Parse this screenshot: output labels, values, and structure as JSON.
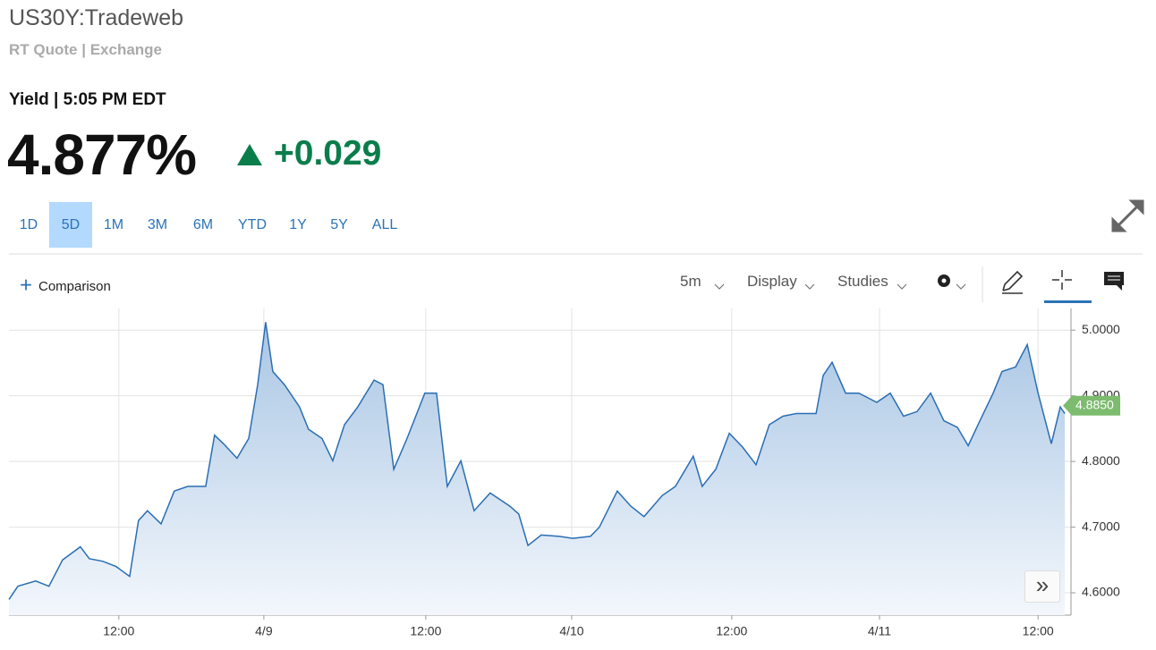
{
  "header": {
    "title": "US30Y:Tradeweb",
    "subtitle": "RT Quote | Exchange",
    "quote_label": "Yield | 5:05 PM EDT",
    "price": "4.877%",
    "change": "+0.029"
  },
  "ranges": [
    "1D",
    "5D",
    "1M",
    "3M",
    "6M",
    "YTD",
    "1Y",
    "5Y",
    "ALL"
  ],
  "active_range": 1,
  "toolbar": {
    "comparison": "Comparison",
    "interval": "5m",
    "display": "Display",
    "studies": "Studies"
  },
  "chart_data": {
    "type": "line",
    "color": "#2a6eb3",
    "x": [
      0.172,
      0.201,
      0.259,
      0.302,
      0.346,
      0.404,
      0.433,
      0.477,
      0.52,
      0.564,
      0.593,
      0.622,
      0.666,
      0.709,
      0.753,
      0.811,
      0.84,
      0.869,
      0.913,
      0.951,
      0.98,
      1.006,
      1.029,
      1.067,
      1.116,
      1.145,
      1.189,
      1.224,
      1.262,
      1.305,
      1.358,
      1.387,
      1.422,
      1.465,
      1.523,
      1.561,
      1.596,
      1.64,
      1.683,
      1.735,
      1.799,
      1.828,
      1.858,
      1.901,
      1.959,
      2.003,
      2.061,
      2.09,
      2.148,
      2.192,
      2.235,
      2.294,
      2.337,
      2.395,
      2.424,
      2.468,
      2.512,
      2.555,
      2.599,
      2.642,
      2.686,
      2.73,
      2.794,
      2.817,
      2.846,
      2.89,
      2.933,
      2.991,
      3.035,
      3.078,
      3.122,
      3.166,
      3.209,
      3.253,
      3.288,
      3.326,
      3.369,
      3.398,
      3.442,
      3.48,
      3.515,
      3.558,
      3.587,
      3.602
    ],
    "values": [
      4.59,
      4.61,
      4.618,
      4.61,
      4.65,
      4.67,
      4.652,
      4.648,
      4.64,
      4.625,
      4.71,
      4.725,
      4.705,
      4.755,
      4.762,
      4.762,
      4.84,
      4.827,
      4.805,
      4.835,
      4.917,
      5.012,
      4.937,
      4.917,
      4.883,
      4.849,
      4.835,
      4.801,
      4.856,
      4.883,
      4.924,
      4.917,
      4.788,
      4.835,
      4.904,
      4.904,
      4.762,
      4.801,
      4.725,
      4.752,
      4.732,
      4.72,
      4.672,
      4.688,
      4.686,
      4.683,
      4.686,
      4.7,
      4.755,
      4.732,
      4.716,
      4.748,
      4.762,
      4.808,
      4.762,
      4.788,
      4.843,
      4.822,
      4.795,
      4.856,
      4.869,
      4.873,
      4.873,
      4.931,
      4.951,
      4.904,
      4.904,
      4.89,
      4.904,
      4.869,
      4.876,
      4.904,
      4.862,
      4.852,
      4.824,
      4.862,
      4.904,
      4.937,
      4.944,
      4.978,
      4.904,
      4.827,
      4.883,
      4.873
    ],
    "xlim": [
      0.172,
      3.622
    ],
    "xticks": [
      {
        "value": 0.529,
        "label": "12:00"
      },
      {
        "value": 1,
        "label": "4/9"
      },
      {
        "value": 1.526,
        "label": "12:00"
      },
      {
        "value": 2,
        "label": "4/10"
      },
      {
        "value": 2.52,
        "label": "12:00"
      },
      {
        "value": 3,
        "label": "4/11"
      },
      {
        "value": 3.515,
        "label": "12:00"
      }
    ],
    "ylim": [
      4.566,
      5.033
    ],
    "yticks": [
      {
        "value": 4.6,
        "label": "4.6000"
      },
      {
        "value": 4.7,
        "label": "4.7000"
      },
      {
        "value": 4.8,
        "label": "4.8000"
      },
      {
        "value": 4.9,
        "label": "4.9000"
      },
      {
        "value": 5.0,
        "label": "5.0000"
      }
    ],
    "last_price": {
      "value": 4.885,
      "label": "4.8850"
    },
    "grid": true
  }
}
